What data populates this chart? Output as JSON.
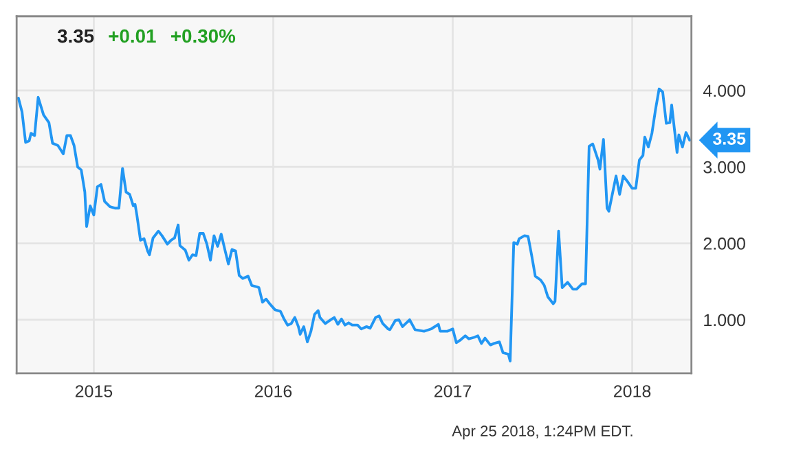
{
  "chart_data": {
    "type": "line",
    "title": "3.35 +0.01 +0.30%",
    "annotations": [
      {
        "text": "3.35",
        "x": 2018.32,
        "y": 3.35
      },
      "Apr 25 2018, 1:24PM EDT."
    ],
    "xlim": [
      2014.57,
      2018.33
    ],
    "xticks": [
      2015,
      2016,
      2017,
      2018
    ],
    "ylim": [
      0.3,
      4.97
    ],
    "yticks": [
      {
        "value": 1,
        "label": "1.000"
      },
      {
        "value": 2,
        "label": "2.000"
      },
      {
        "value": 3,
        "label": "3.000"
      },
      {
        "value": 4,
        "label": "4.000"
      }
    ],
    "grid": true,
    "marker": "none",
    "line_style": "solid",
    "series": [
      {
        "color": "#2196f3",
        "x": [
          2014.58,
          2014.6,
          2014.62,
          2014.64,
          2014.65,
          2014.67,
          2014.69,
          2014.72,
          2014.75,
          2014.77,
          2014.8,
          2014.83,
          2014.85,
          2014.87,
          2014.89,
          2014.91,
          2014.93,
          2014.95,
          2014.96,
          2014.98,
          2015.0,
          2015.02,
          2015.04,
          2015.06,
          2015.09,
          2015.12,
          2015.14,
          2015.16,
          2015.18,
          2015.2,
          2015.22,
          2015.23,
          2015.24,
          2015.26,
          2015.28,
          2015.3,
          2015.31,
          2015.33,
          2015.36,
          2015.38,
          2015.41,
          2015.43,
          2015.45,
          2015.47,
          2015.48,
          2015.51,
          2015.53,
          2015.55,
          2015.57,
          2015.59,
          2015.61,
          2015.63,
          2015.65,
          2015.67,
          2015.69,
          2015.71,
          2015.73,
          2015.75,
          2015.77,
          2015.79,
          2015.81,
          2015.83,
          2015.86,
          2015.88,
          2015.91,
          2015.92,
          2015.94,
          2015.96,
          2015.98,
          2016.01,
          2016.04,
          2016.06,
          2016.08,
          2016.1,
          2016.12,
          2016.14,
          2016.15,
          2016.17,
          2016.19,
          2016.21,
          2016.23,
          2016.25,
          2016.26,
          2016.29,
          2016.32,
          2016.34,
          2016.36,
          2016.38,
          2016.4,
          2016.42,
          2016.44,
          2016.47,
          2016.49,
          2016.52,
          2016.54,
          2016.57,
          2016.59,
          2016.61,
          2016.64,
          2016.65,
          2016.68,
          2016.7,
          2016.72,
          2016.76,
          2016.79,
          2016.84,
          2016.88,
          2016.92,
          2016.93,
          2016.97,
          2017.0,
          2017.02,
          2017.04,
          2017.07,
          2017.09,
          2017.12,
          2017.14,
          2017.16,
          2017.18,
          2017.21,
          2017.23,
          2017.26,
          2017.28,
          2017.31,
          2017.32,
          2017.34,
          2017.36,
          2017.37,
          2017.4,
          2017.42,
          2017.44,
          2017.46,
          2017.49,
          2017.51,
          2017.53,
          2017.56,
          2017.57,
          2017.59,
          2017.61,
          2017.64,
          2017.67,
          2017.69,
          2017.72,
          2017.74,
          2017.76,
          2017.78,
          2017.81,
          2017.82,
          2017.84,
          2017.86,
          2017.87,
          2017.91,
          2017.93,
          2017.95,
          2017.97,
          2018.0,
          2018.02,
          2018.04,
          2018.06,
          2018.07,
          2018.09,
          2018.11,
          2018.13,
          2018.15,
          2018.17,
          2018.19,
          2018.21,
          2018.22,
          2018.25,
          2018.26,
          2018.28,
          2018.3,
          2018.32
        ],
        "values": [
          3.9,
          3.72,
          3.32,
          3.34,
          3.44,
          3.41,
          3.91,
          3.68,
          3.58,
          3.31,
          3.28,
          3.17,
          3.41,
          3.41,
          3.28,
          3.0,
          2.96,
          2.67,
          2.22,
          2.49,
          2.37,
          2.74,
          2.77,
          2.55,
          2.48,
          2.46,
          2.46,
          2.98,
          2.67,
          2.64,
          2.49,
          2.51,
          2.37,
          2.04,
          2.06,
          1.9,
          1.85,
          2.07,
          2.16,
          2.1,
          1.99,
          2.04,
          2.07,
          2.24,
          1.97,
          1.91,
          1.78,
          1.85,
          1.84,
          2.13,
          2.13,
          1.99,
          1.78,
          2.1,
          1.96,
          2.12,
          1.92,
          1.73,
          1.92,
          1.9,
          1.58,
          1.54,
          1.57,
          1.45,
          1.43,
          1.42,
          1.23,
          1.27,
          1.21,
          1.13,
          1.11,
          1.01,
          0.93,
          0.95,
          1.03,
          0.91,
          0.81,
          0.91,
          0.71,
          0.85,
          1.07,
          1.12,
          1.03,
          0.95,
          1.0,
          1.03,
          0.94,
          1.01,
          0.93,
          0.96,
          0.93,
          0.93,
          0.88,
          0.91,
          0.89,
          1.03,
          1.05,
          0.95,
          0.88,
          0.87,
          0.99,
          1.0,
          0.91,
          1.0,
          0.87,
          0.85,
          0.88,
          0.94,
          0.85,
          0.85,
          0.88,
          0.7,
          0.73,
          0.79,
          0.75,
          0.77,
          0.79,
          0.69,
          0.76,
          0.67,
          0.69,
          0.71,
          0.57,
          0.55,
          0.46,
          2.01,
          1.99,
          2.06,
          2.1,
          2.09,
          1.84,
          1.57,
          1.52,
          1.45,
          1.3,
          1.21,
          1.24,
          2.16,
          1.42,
          1.49,
          1.4,
          1.4,
          1.47,
          1.47,
          3.27,
          3.3,
          3.09,
          2.97,
          3.36,
          2.46,
          2.42,
          2.88,
          2.64,
          2.88,
          2.82,
          2.72,
          2.72,
          3.09,
          3.15,
          3.39,
          3.26,
          3.44,
          3.75,
          4.02,
          3.98,
          3.57,
          3.58,
          3.81,
          3.19,
          3.42,
          3.26,
          3.45,
          3.35
        ]
      }
    ]
  }
}
